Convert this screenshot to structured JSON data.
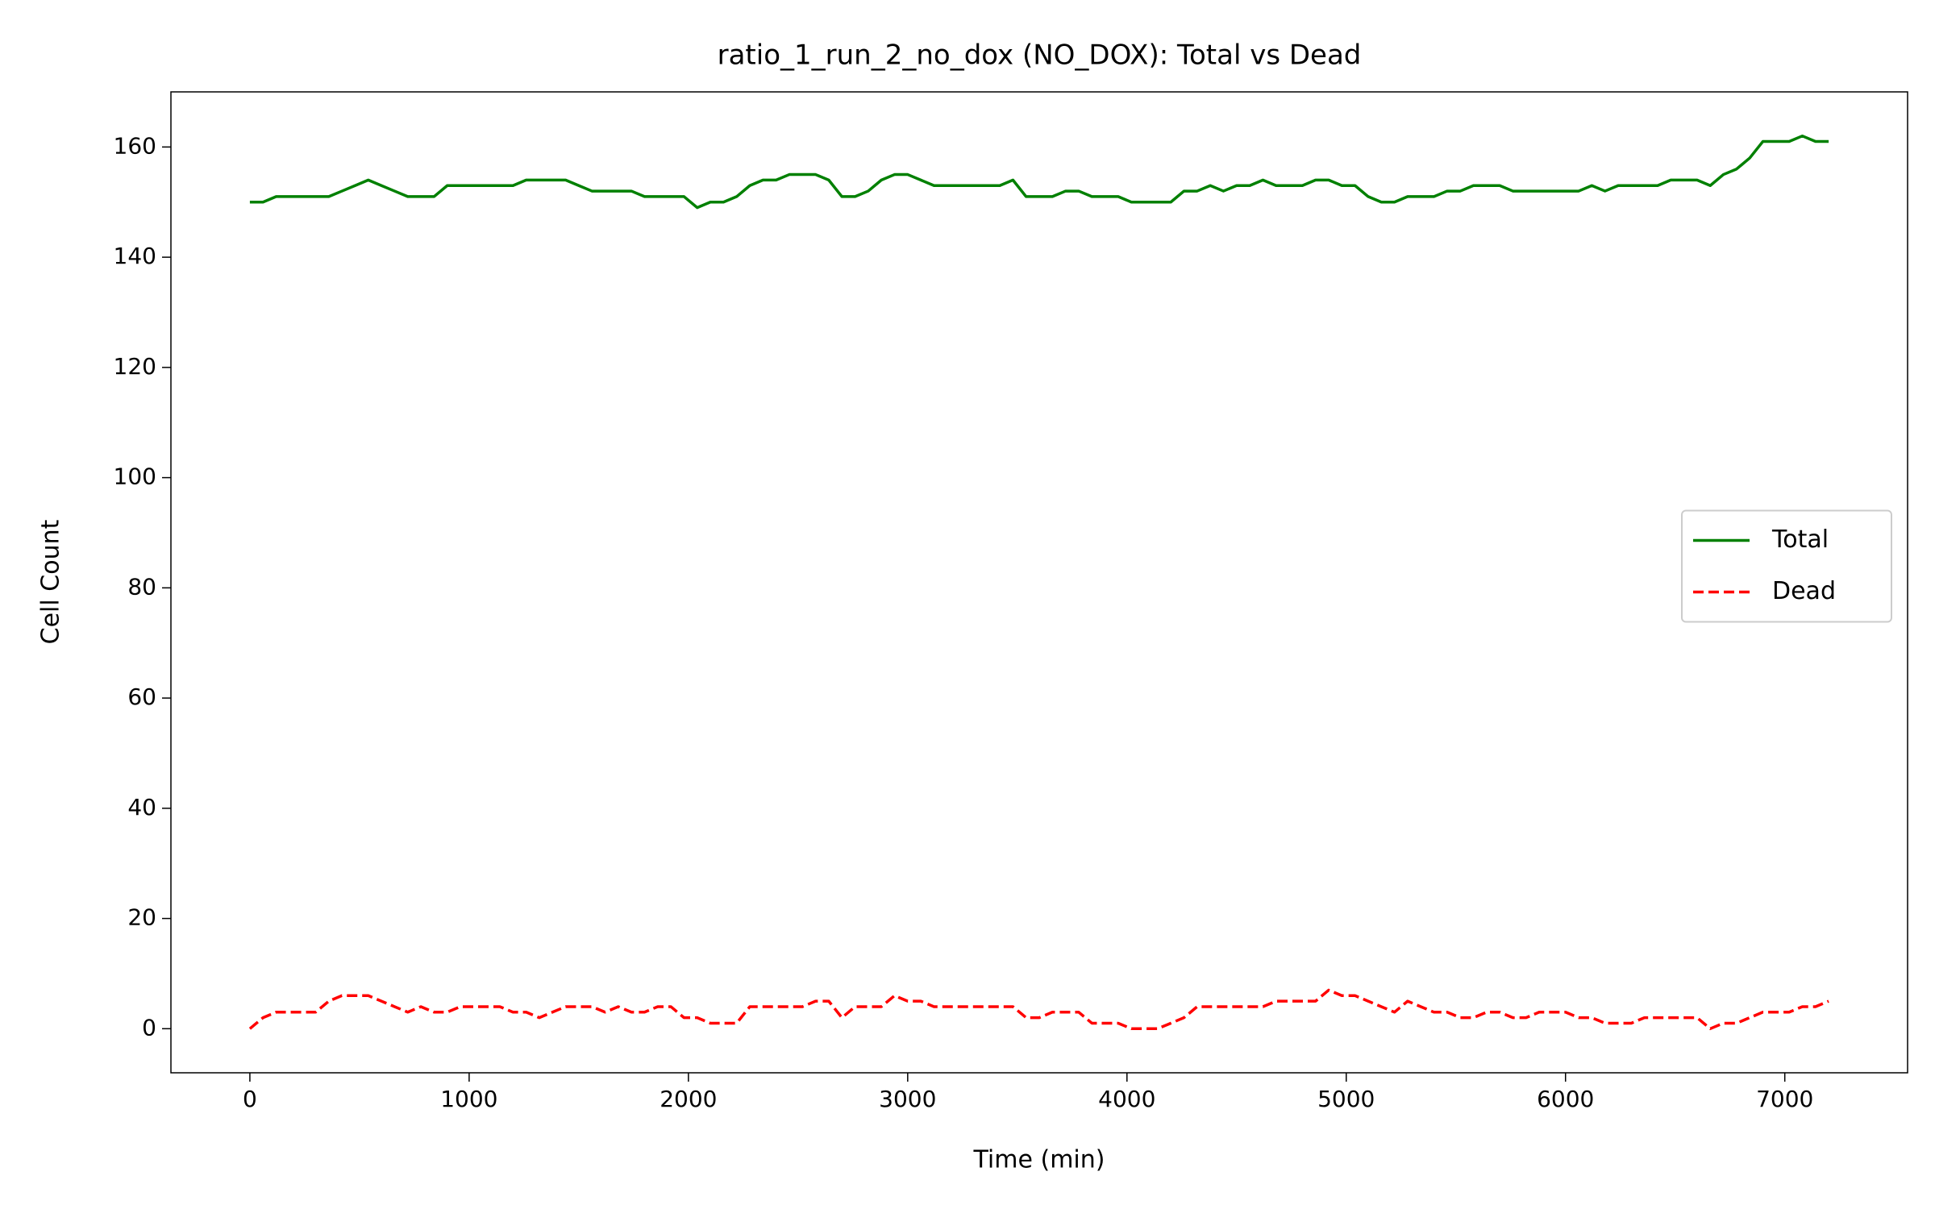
{
  "chart_data": {
    "type": "line",
    "title": "ratio_1_run_2_no_dox (NO_DOX): Total vs Dead",
    "x_label": "Time (min)",
    "y_label": "Cell Count",
    "x": [
      0,
      60,
      120,
      180,
      240,
      300,
      360,
      420,
      480,
      540,
      600,
      660,
      720,
      780,
      840,
      900,
      960,
      1020,
      1080,
      1140,
      1200,
      1260,
      1320,
      1380,
      1440,
      1500,
      1560,
      1620,
      1680,
      1740,
      1800,
      1860,
      1920,
      1980,
      2040,
      2100,
      2160,
      2220,
      2280,
      2340,
      2400,
      2460,
      2520,
      2580,
      2640,
      2700,
      2760,
      2820,
      2880,
      2940,
      3000,
      3060,
      3120,
      3180,
      3240,
      3300,
      3360,
      3420,
      3480,
      3540,
      3600,
      3660,
      3720,
      3780,
      3840,
      3900,
      3960,
      4020,
      4080,
      4140,
      4200,
      4260,
      4320,
      4380,
      4440,
      4500,
      4560,
      4620,
      4680,
      4740,
      4800,
      4860,
      4920,
      4980,
      5040,
      5100,
      5160,
      5220,
      5280,
      5340,
      5400,
      5460,
      5520,
      5580,
      5640,
      5700,
      5760,
      5820,
      5880,
      5940,
      6000,
      6060,
      6120,
      6180,
      6240,
      6300,
      6360,
      6420,
      6480,
      6540,
      6600,
      6660,
      6720,
      6780,
      6840,
      6900,
      6960,
      7020,
      7080,
      7140,
      7200
    ],
    "series": [
      {
        "name": "Total",
        "color": "#008000",
        "dash": "solid",
        "values": [
          150,
          150,
          151,
          151,
          151,
          151,
          151,
          152,
          153,
          154,
          153,
          152,
          151,
          151,
          151,
          153,
          153,
          153,
          153,
          153,
          153,
          154,
          154,
          154,
          154,
          153,
          152,
          152,
          152,
          152,
          151,
          151,
          151,
          151,
          149,
          150,
          150,
          151,
          153,
          154,
          154,
          155,
          155,
          155,
          154,
          151,
          151,
          152,
          154,
          155,
          155,
          154,
          153,
          153,
          153,
          153,
          153,
          153,
          154,
          151,
          151,
          151,
          152,
          152,
          151,
          151,
          151,
          150,
          150,
          150,
          150,
          152,
          152,
          153,
          152,
          153,
          153,
          154,
          153,
          153,
          153,
          154,
          154,
          153,
          153,
          151,
          150,
          150,
          151,
          151,
          151,
          152,
          152,
          153,
          153,
          153,
          152,
          152,
          152,
          152,
          152,
          152,
          153,
          152,
          153,
          153,
          153,
          153,
          154,
          154,
          154,
          153,
          155,
          156,
          158,
          161,
          161,
          161,
          162,
          161,
          161
        ]
      },
      {
        "name": "Dead",
        "color": "#ff0000",
        "dash": "dashed",
        "values": [
          0,
          2,
          3,
          3,
          3,
          3,
          5,
          6,
          6,
          6,
          5,
          4,
          3,
          4,
          3,
          3,
          4,
          4,
          4,
          4,
          3,
          3,
          2,
          3,
          4,
          4,
          4,
          3,
          4,
          3,
          3,
          4,
          4,
          2,
          2,
          1,
          1,
          1,
          4,
          4,
          4,
          4,
          4,
          5,
          5,
          2,
          4,
          4,
          4,
          6,
          5,
          5,
          4,
          4,
          4,
          4,
          4,
          4,
          4,
          2,
          2,
          3,
          3,
          3,
          1,
          1,
          1,
          0,
          0,
          0,
          1,
          2,
          4,
          4,
          4,
          4,
          4,
          4,
          5,
          5,
          5,
          5,
          7,
          6,
          6,
          5,
          4,
          3,
          5,
          4,
          3,
          3,
          2,
          2,
          3,
          3,
          2,
          2,
          3,
          3,
          3,
          2,
          2,
          1,
          1,
          1,
          2,
          2,
          2,
          2,
          2,
          0,
          1,
          1,
          2,
          3,
          3,
          3,
          4,
          4,
          5
        ]
      }
    ],
    "xlim": [
      -360,
      7560
    ],
    "ylim": [
      -8,
      170
    ],
    "xticks": [
      0,
      1000,
      2000,
      3000,
      4000,
      5000,
      6000,
      7000
    ],
    "yticks": [
      0,
      20,
      40,
      60,
      80,
      100,
      120,
      140,
      160
    ],
    "grid": false,
    "legend": "right"
  }
}
